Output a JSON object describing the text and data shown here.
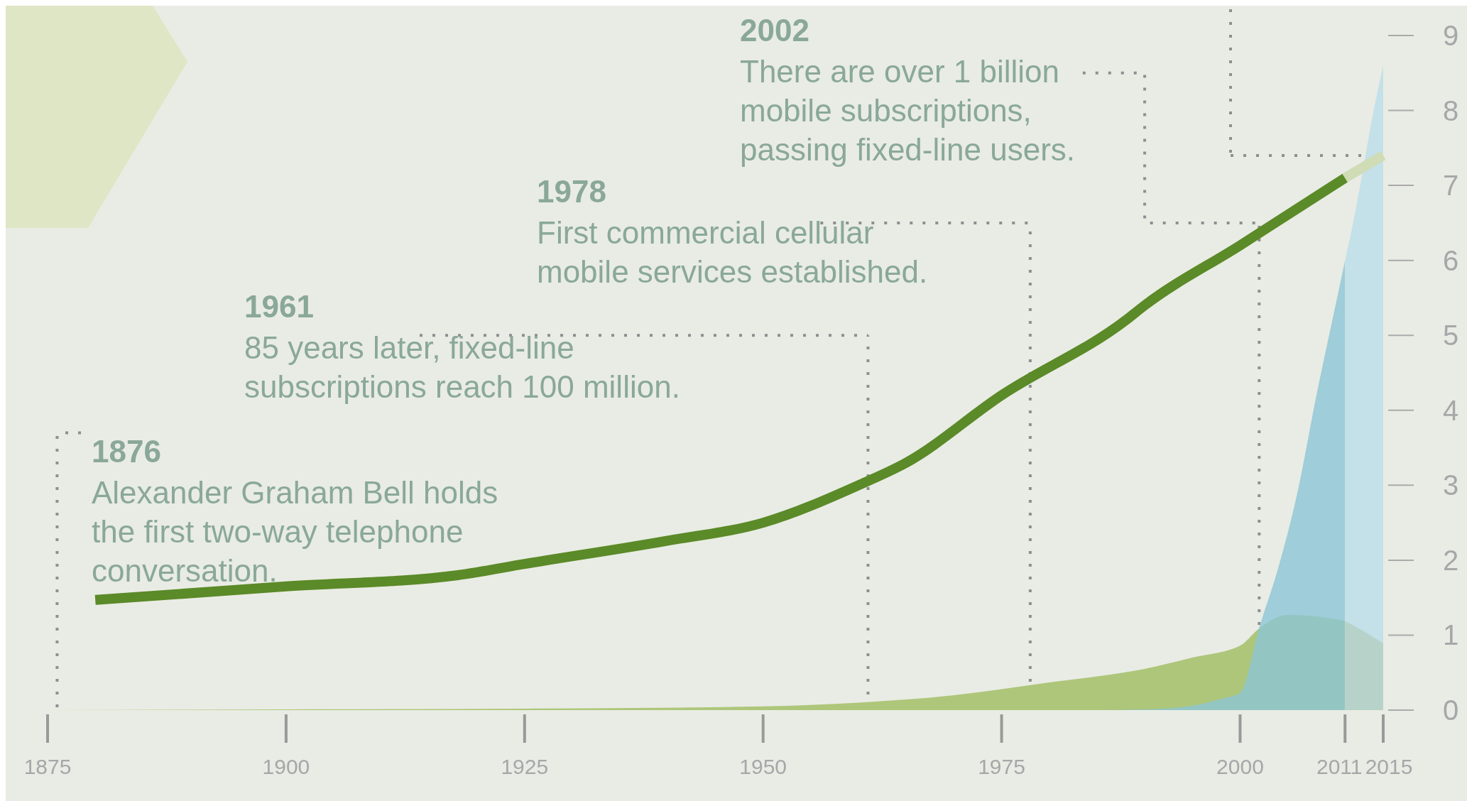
{
  "chart_data": {
    "type": "area",
    "series": [
      {
        "color": "#aec67a",
        "x": [
          1875,
          1900,
          1925,
          1950,
          1960,
          1970,
          1975,
          1980,
          1985,
          1990,
          1995,
          2000,
          2002,
          2005,
          2008,
          2011
        ],
        "values": [
          0,
          0.01,
          0.02,
          0.05,
          0.1,
          0.2,
          0.28,
          0.37,
          0.45,
          0.55,
          0.7,
          0.86,
          1.09,
          1.27,
          1.25,
          1.19
        ]
      },
      {
        "color": "#8cc6d6",
        "x": [
          1985,
          1990,
          1995,
          1998,
          2000,
          2002,
          2004,
          2006,
          2008,
          2010,
          2011
        ],
        "values": [
          0,
          0.01,
          0.06,
          0.15,
          0.23,
          1.1,
          1.9,
          2.9,
          4.2,
          5.4,
          6.0
        ]
      },
      {
        "color": "#c4e0e9",
        "x": [
          2011,
          2012,
          2013,
          2014,
          2015
        ],
        "values": [
          6.0,
          6.6,
          7.3,
          8.0,
          8.6
        ]
      },
      {
        "color": "#b7d2c9",
        "x": [
          2011,
          2013,
          2015
        ],
        "values": [
          1.19,
          1.05,
          0.89
        ]
      },
      {
        "type": "line",
        "color": "#5b8a28",
        "x": [
          1880,
          1900,
          1918,
          1925,
          1940,
          1950,
          1960,
          1965,
          1975,
          1988,
          1990,
          2000,
          2011
        ],
        "values": [
          1.47,
          1.65,
          1.8,
          1.95,
          2.26,
          2.5,
          3.0,
          3.3,
          4.2,
          5.2,
          5.4,
          6.2,
          7.1
        ]
      },
      {
        "type": "line",
        "color": "#cfdcb6",
        "x": [
          2011,
          2015
        ],
        "values": [
          7.1,
          7.4
        ]
      }
    ],
    "grid": false,
    "xlim": [
      1875,
      2015
    ],
    "xticks": [
      1875,
      1900,
      1925,
      1950,
      1975,
      2000,
      2011,
      2015
    ],
    "ylim": [
      0,
      9
    ],
    "yticks": [
      0,
      1,
      2,
      3,
      4,
      5,
      6,
      7,
      8,
      9
    ],
    "ref_lines": [
      {
        "axis": "x",
        "value": 1876,
        "line_style": "dotted",
        "color": "#8c9090"
      },
      {
        "axis": "x",
        "value": 1961,
        "line_style": "dotted",
        "color": "#8c9090"
      },
      {
        "axis": "x",
        "value": 1978,
        "line_style": "dotted",
        "color": "#8c9090"
      },
      {
        "axis": "x",
        "value": 2002,
        "line_style": "dotted",
        "color": "#8c9090"
      },
      {
        "axis": "x",
        "value": 1999,
        "line_style": "dotted",
        "color": "#8c9090"
      },
      {
        "axis": "y",
        "value": 7.4,
        "line_style": "dotted",
        "color": "#8c9090"
      }
    ],
    "annotations": [
      {
        "text": "1876\nAlexander Graham Bell holds\nthe first two-way telephone\nconversation.",
        "x": 1876,
        "y": 3.7
      },
      {
        "text": "1961\n85 years later, fixed-line\nsubscriptions reach 100 million.",
        "x": 1961,
        "y": 5.0
      },
      {
        "text": "1978\nFirst commercial cellular\nmobile services established.",
        "x": 1978,
        "y": 6.5
      },
      {
        "text": "2002\nThere are over 1 billion\nmobile subscriptions,\npassing fixed-line users.",
        "x": 2002,
        "y": 6.5
      }
    ]
  }
}
